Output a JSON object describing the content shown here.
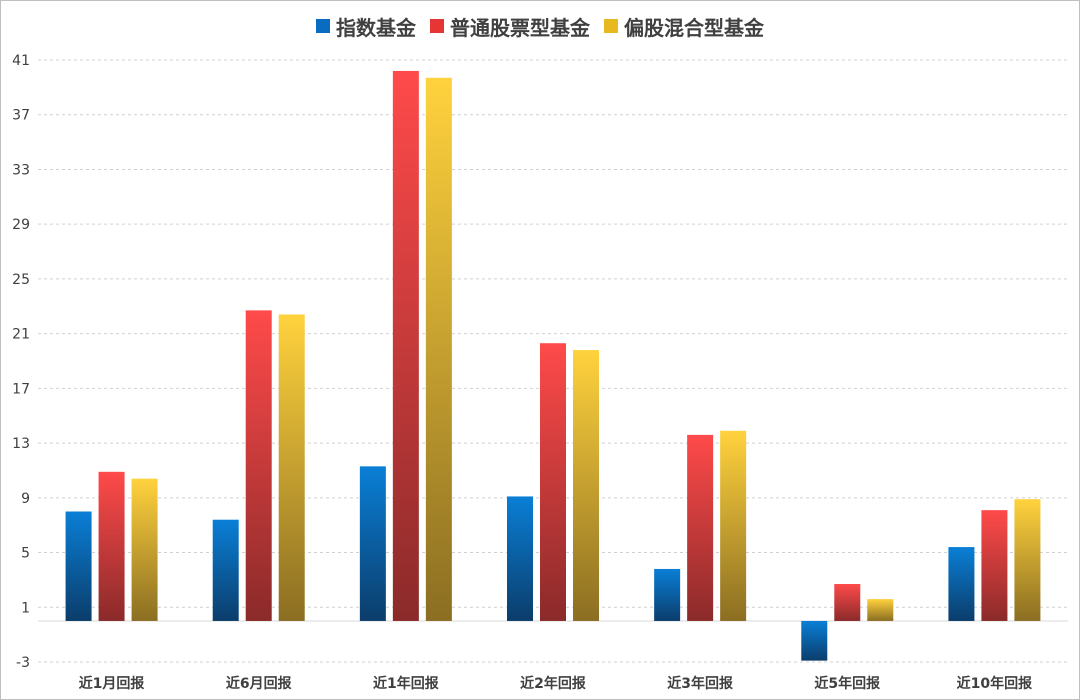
{
  "chart_data": {
    "type": "bar",
    "categories": [
      "近1月回报",
      "近6月回报",
      "近1年回报",
      "近2年回报",
      "近3年回报",
      "近5年回报",
      "近10年回报"
    ],
    "series": [
      {
        "name": "指数基金",
        "values": [
          8.0,
          7.4,
          11.3,
          9.1,
          3.8,
          -2.9,
          5.4
        ],
        "color_top": "#0a7fd6",
        "color_bottom": "#0b3d6b"
      },
      {
        "name": "普通股票型基金",
        "values": [
          10.9,
          22.7,
          40.2,
          20.3,
          13.6,
          2.7,
          8.1
        ],
        "color_top": "#ff4a4a",
        "color_bottom": "#8b2a2a"
      },
      {
        "name": "偏股混合型基金",
        "values": [
          10.4,
          22.4,
          39.7,
          19.8,
          13.9,
          1.6,
          8.9
        ],
        "color_top": "#ffd23d",
        "color_bottom": "#8b6e22"
      }
    ],
    "yticks": [
      -3,
      1,
      5,
      9,
      13,
      17,
      21,
      25,
      29,
      33,
      37,
      41
    ],
    "ylim": [
      -3,
      41
    ],
    "grid": true,
    "legend_position": "top",
    "title": "",
    "xlabel": "",
    "ylabel": ""
  }
}
